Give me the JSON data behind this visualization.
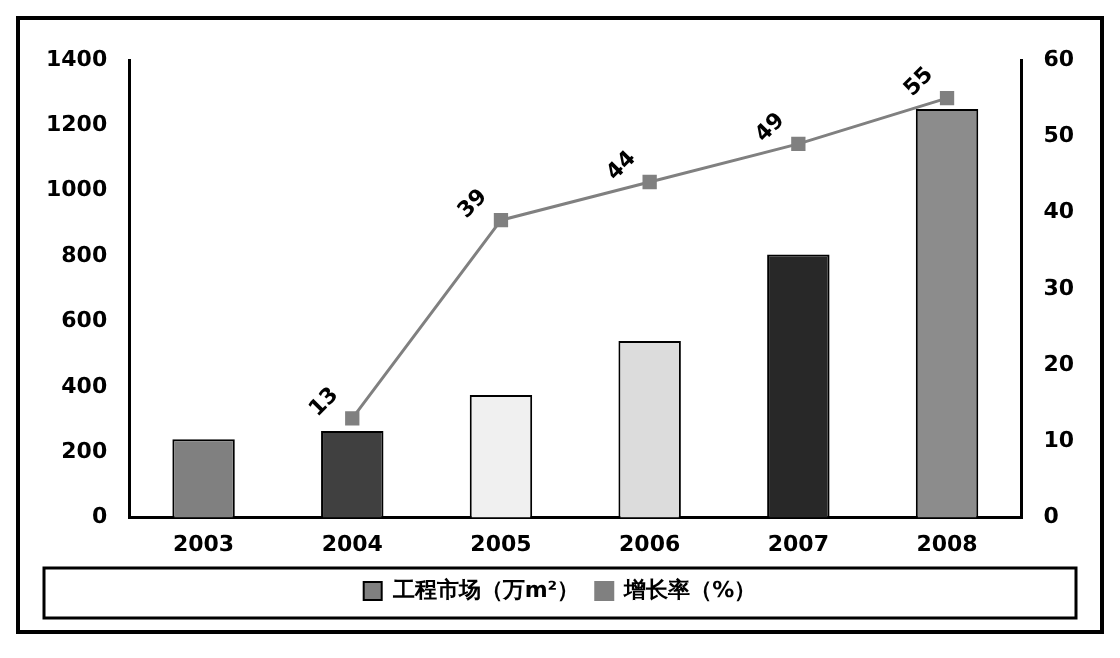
{
  "chart_data": {
    "type": "bar",
    "categories": [
      "2003",
      "2004",
      "2005",
      "2006",
      "2007",
      "2008"
    ],
    "series": [
      {
        "name": "工程市场（万m²）",
        "color": "#808080",
        "colors": [
          "#808080",
          "#404040",
          "#f0f0f0",
          "#dcdcdc",
          "#282828",
          "#8c8c8c"
        ],
        "values": [
          240,
          265,
          375,
          540,
          805,
          1250
        ]
      },
      {
        "name": "增长率（%）",
        "type": "line",
        "axis": "y2",
        "color": "#808080",
        "marker": "square",
        "data_labels": true,
        "values": [
          null,
          13,
          39,
          44,
          49,
          55
        ]
      }
    ],
    "ylim": [
      0,
      1400
    ],
    "yticks": [
      0,
      200,
      400,
      600,
      800,
      1000,
      1200,
      1400
    ],
    "y2lim": [
      0,
      60
    ],
    "y2ticks": [
      0,
      10,
      20,
      30,
      40,
      50,
      60
    ],
    "grid": false,
    "legend": "bottom"
  }
}
